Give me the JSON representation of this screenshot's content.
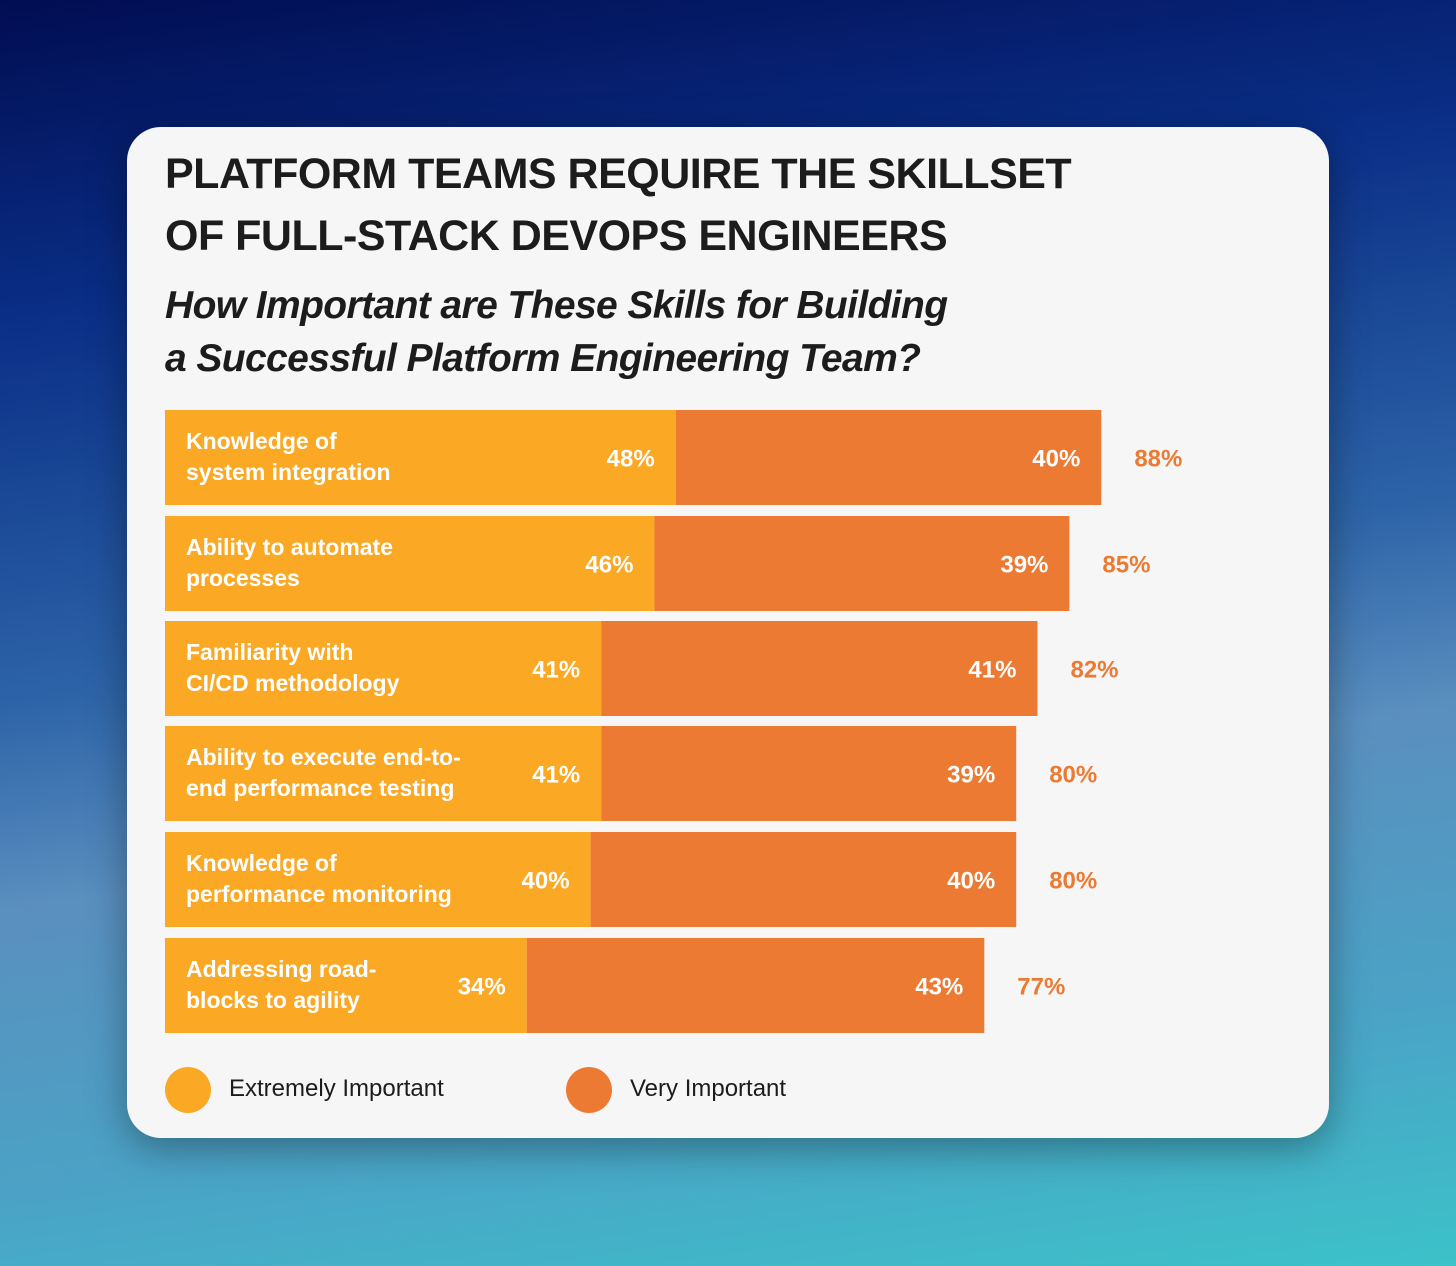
{
  "header": {
    "title_lines": [
      "PLATFORM TEAMS REQUIRE THE SKILLSET",
      "OF FULL-STACK DEVOPS ENGINEERS"
    ],
    "subtitle_lines": [
      "How Important are These Skills for Building",
      "a Successful Platform Engineering Team?"
    ]
  },
  "colors": {
    "extremely": "#fba824",
    "very": "#ec7a32",
    "total_label": "#ec7a32",
    "bar_label": "#ffffff"
  },
  "chart_data": {
    "type": "bar",
    "orientation": "horizontal",
    "stacked": true,
    "categories": [
      [
        "Knowledge of",
        "system integration"
      ],
      [
        "Ability to automate",
        "processes"
      ],
      [
        "Familiarity with",
        "CI/CD methodology"
      ],
      [
        "Ability to execute end-to-",
        "end performance testing"
      ],
      [
        "Knowledge of",
        "performance monitoring"
      ],
      [
        "Addressing road-",
        "blocks to agility"
      ]
    ],
    "series": [
      {
        "name": "Extremely Important",
        "values": [
          48,
          46,
          41,
          41,
          40,
          34
        ],
        "labels": [
          "48%",
          "46%",
          "41%",
          "41%",
          "40%",
          "34%"
        ]
      },
      {
        "name": "Very Important",
        "values": [
          40,
          39,
          41,
          39,
          40,
          43
        ],
        "labels": [
          "40%",
          "39%",
          "41%",
          "39%",
          "40%",
          "43%"
        ]
      }
    ],
    "totals": [
      88,
      85,
      82,
      80,
      80,
      77
    ],
    "total_labels": [
      "88%",
      "85%",
      "82%",
      "80%",
      "80%",
      "77%"
    ],
    "legend_position": "bottom-left",
    "grid": false
  },
  "legend": [
    {
      "label": "Extremely Important"
    },
    {
      "label": "Very Important"
    }
  ]
}
